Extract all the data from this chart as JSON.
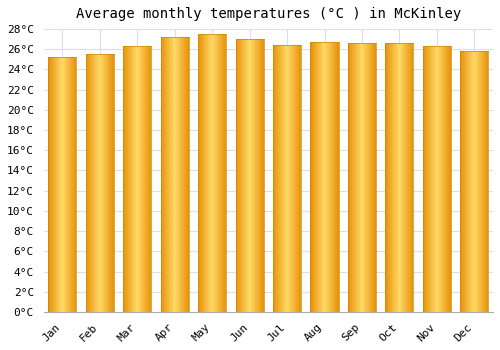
{
  "title": "Average monthly temperatures (°C ) in McKinley",
  "months": [
    "Jan",
    "Feb",
    "Mar",
    "Apr",
    "May",
    "Jun",
    "Jul",
    "Aug",
    "Sep",
    "Oct",
    "Nov",
    "Dec"
  ],
  "temperatures": [
    25.2,
    25.5,
    26.3,
    27.2,
    27.5,
    27.0,
    26.4,
    26.7,
    26.6,
    26.6,
    26.3,
    25.8
  ],
  "ylim": [
    0,
    28
  ],
  "ytick_step": 2,
  "bar_color_center": "#FFD966",
  "bar_color_edge": "#E8920A",
  "background_color": "#FFFFFF",
  "plot_bg_color": "#FFFFFF",
  "grid_color": "#DDDDEE",
  "title_fontsize": 10,
  "tick_fontsize": 8,
  "font_family": "monospace"
}
